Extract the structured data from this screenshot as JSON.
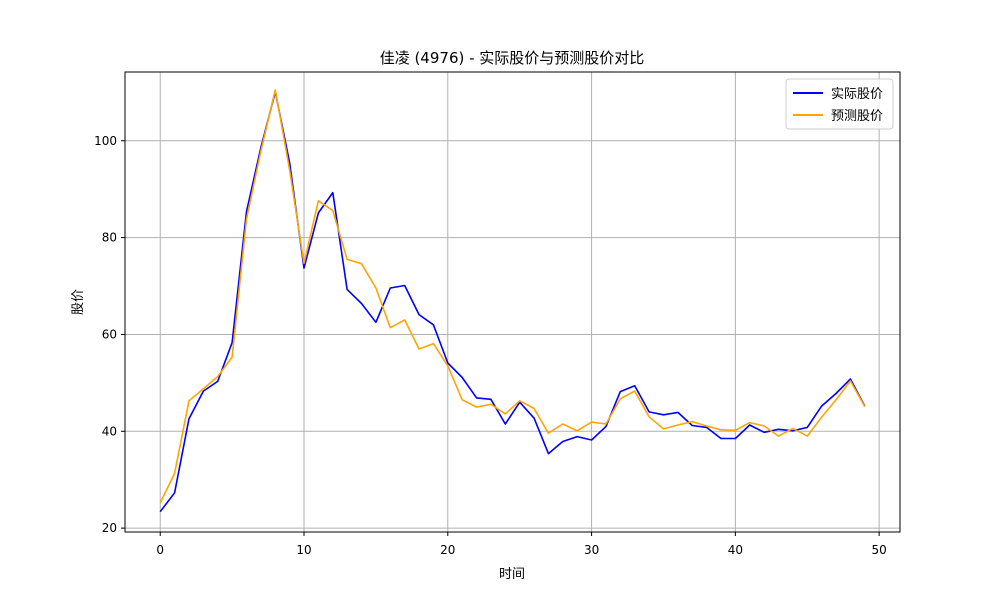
{
  "chart_data": {
    "type": "line",
    "title": "佳凌 (4976) - 实际股价与预测股价对比",
    "xlabel": "时间",
    "ylabel": "股价",
    "xlim": [
      -2.45,
      51.45
    ],
    "ylim": [
      19.2,
      114.2
    ],
    "xticks": [
      0,
      10,
      20,
      30,
      40,
      50
    ],
    "yticks": [
      20,
      40,
      60,
      80,
      100
    ],
    "grid": true,
    "legend_position": "top-right",
    "x": [
      0,
      1,
      2,
      3,
      4,
      5,
      6,
      7,
      8,
      9,
      10,
      11,
      12,
      13,
      14,
      15,
      16,
      17,
      18,
      19,
      20,
      21,
      22,
      23,
      24,
      25,
      26,
      27,
      28,
      29,
      30,
      31,
      32,
      33,
      34,
      35,
      36,
      37,
      38,
      39,
      40,
      41,
      42,
      43,
      44,
      45,
      46,
      47,
      48,
      49
    ],
    "series": [
      {
        "name": "实际股价",
        "color": "#0000ff",
        "values": [
          23.4,
          27.3,
          42.6,
          48.3,
          50.3,
          58.3,
          85.4,
          98.6,
          110.1,
          95.5,
          73.7,
          85.1,
          89.3,
          69.3,
          66.4,
          62.5,
          69.6,
          70.1,
          64.1,
          62.0,
          54.1,
          51.1,
          46.9,
          46.6,
          41.5,
          46.0,
          42.7,
          35.4,
          37.9,
          38.9,
          38.2,
          41.0,
          48.2,
          49.4,
          44.0,
          43.4,
          43.9,
          41.2,
          40.8,
          38.5,
          38.5,
          41.3,
          39.8,
          40.4,
          40.1,
          40.8,
          45.2,
          47.8,
          50.8,
          45.2
        ]
      },
      {
        "name": "预测股价",
        "color": "#ffa500",
        "values": [
          25.2,
          31.3,
          46.3,
          48.8,
          51.3,
          55.3,
          83.8,
          97.9,
          110.5,
          94.0,
          74.7,
          87.6,
          85.6,
          75.5,
          74.6,
          69.6,
          61.4,
          63.0,
          57.0,
          58.1,
          53.5,
          46.5,
          45.0,
          45.6,
          43.6,
          46.3,
          44.7,
          39.6,
          41.5,
          40.1,
          41.9,
          41.5,
          46.7,
          48.3,
          43.0,
          40.5,
          41.3,
          42.0,
          41.1,
          40.3,
          40.2,
          41.8,
          41.1,
          39.0,
          40.6,
          39.0,
          42.9,
          46.5,
          50.4,
          45.1
        ]
      }
    ]
  }
}
